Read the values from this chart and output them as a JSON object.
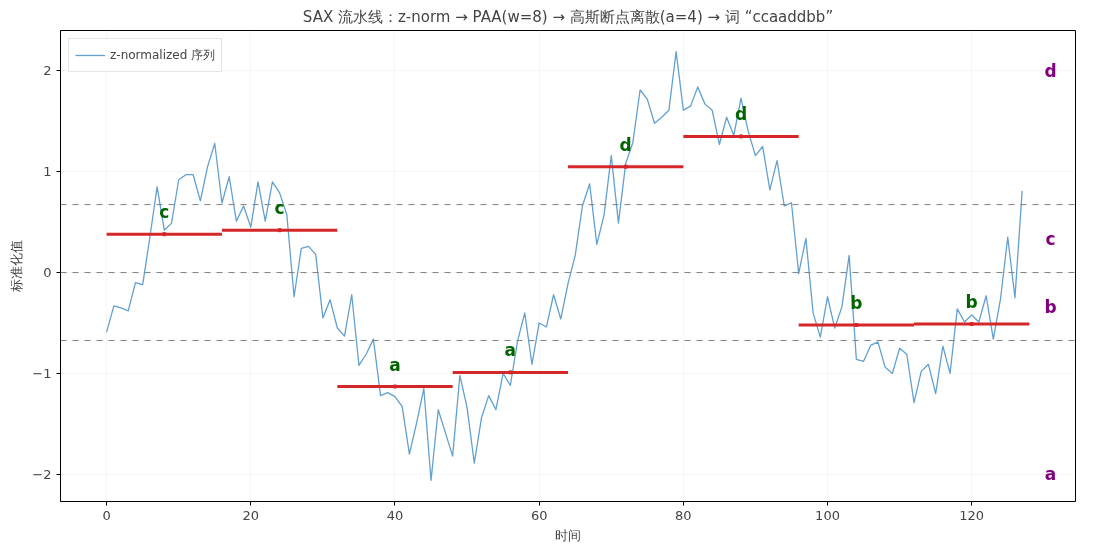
{
  "chart_data": {
    "type": "line",
    "title": "SAX 流水线：z-norm → PAA(w=8) → 高斯断点离散(a=4) → 词 “ccaaddbb”",
    "xlabel": "时间",
    "ylabel": "标准化值",
    "xlim": [
      -6.4,
      134.4
    ],
    "ylim": [
      -2.27,
      2.4
    ],
    "xticks": [
      0,
      20,
      40,
      60,
      80,
      100,
      120
    ],
    "yticks": [
      -2,
      -1,
      0,
      1,
      2
    ],
    "grid": true,
    "legend": "top left",
    "series": [
      {
        "name": "z-normalized 序列",
        "color": "#62a0cf",
        "x": [
          0,
          1,
          2,
          3,
          4,
          5,
          6,
          7,
          8,
          9,
          10,
          11,
          12,
          13,
          14,
          15,
          16,
          17,
          18,
          19,
          20,
          21,
          22,
          23,
          24,
          25,
          26,
          27,
          28,
          29,
          30,
          31,
          32,
          33,
          34,
          35,
          36,
          37,
          38,
          39,
          40,
          41,
          42,
          43,
          44,
          45,
          46,
          47,
          48,
          49,
          50,
          51,
          52,
          53,
          54,
          55,
          56,
          57,
          58,
          59,
          60,
          61,
          62,
          63,
          64,
          65,
          66,
          67,
          68,
          69,
          70,
          71,
          72,
          73,
          74,
          75,
          76,
          77,
          78,
          79,
          80,
          81,
          82,
          83,
          84,
          85,
          86,
          87,
          88,
          89,
          90,
          91,
          92,
          93,
          94,
          95,
          96,
          97,
          98,
          99,
          100,
          101,
          102,
          103,
          104,
          105,
          106,
          107,
          108,
          109,
          110,
          111,
          112,
          113,
          114,
          115,
          116,
          117,
          118,
          119,
          120,
          121,
          122,
          123,
          124,
          125,
          126,
          127
        ],
        "values": [
          -0.59,
          -0.33,
          -0.35,
          -0.38,
          -0.1,
          -0.12,
          0.35,
          0.85,
          0.42,
          0.49,
          0.92,
          0.97,
          0.97,
          0.71,
          1.05,
          1.28,
          0.69,
          0.95,
          0.51,
          0.66,
          0.45,
          0.9,
          0.51,
          0.9,
          0.79,
          0.57,
          -0.24,
          0.24,
          0.26,
          0.18,
          -0.45,
          -0.27,
          -0.55,
          -0.63,
          -0.22,
          -0.92,
          -0.81,
          -0.66,
          -1.22,
          -1.19,
          -1.23,
          -1.33,
          -1.8,
          -1.49,
          -1.15,
          -2.06,
          -1.36,
          -1.59,
          -1.82,
          -1.02,
          -1.34,
          -1.89,
          -1.44,
          -1.22,
          -1.36,
          -1.0,
          -1.12,
          -0.68,
          -0.4,
          -0.91,
          -0.5,
          -0.54,
          -0.22,
          -0.46,
          -0.11,
          0.17,
          0.66,
          0.88,
          0.28,
          0.57,
          1.16,
          0.49,
          1.08,
          1.29,
          1.81,
          1.72,
          1.48,
          1.54,
          1.61,
          2.19,
          1.61,
          1.65,
          1.84,
          1.67,
          1.61,
          1.27,
          1.54,
          1.36,
          1.73,
          1.4,
          1.16,
          1.25,
          0.82,
          1.11,
          0.66,
          0.69,
          -0.01,
          0.34,
          -0.4,
          -0.64,
          -0.24,
          -0.55,
          -0.34,
          0.17,
          -0.86,
          -0.88,
          -0.72,
          -0.69,
          -0.94,
          -1.0,
          -0.75,
          -0.81,
          -1.29,
          -0.98,
          -0.91,
          -1.2,
          -0.73,
          -1.0,
          -0.36,
          -0.49,
          -0.42,
          -0.49,
          -0.23,
          -0.66,
          -0.26,
          0.35,
          -0.25,
          0.81
        ]
      },
      {
        "type": "scatter",
        "marker": "square",
        "color": "#d62728",
        "x": [
          8,
          24,
          40,
          56,
          72,
          88,
          104,
          120
        ],
        "values": [
          0.38,
          0.42,
          -1.13,
          -0.99,
          1.05,
          1.35,
          -0.52,
          -0.51
        ],
        "xerrors": [
          8,
          8,
          8,
          8,
          8,
          8,
          8,
          8
        ],
        "value_labels": [
          "c",
          "c",
          "a",
          "a",
          "d",
          "d",
          "b",
          "b"
        ]
      }
    ],
    "annotations": [
      "a",
      "b",
      "c",
      "d"
    ],
    "ref_lines": [
      {
        "axis": "y",
        "value": -0.674,
        "color": "#808080",
        "line_style": "dashed"
      },
      {
        "axis": "y",
        "value": 0,
        "color": "#808080",
        "line_style": "dashed"
      },
      {
        "axis": "y",
        "value": 0.674,
        "color": "#808080",
        "line_style": "dashed"
      }
    ]
  }
}
